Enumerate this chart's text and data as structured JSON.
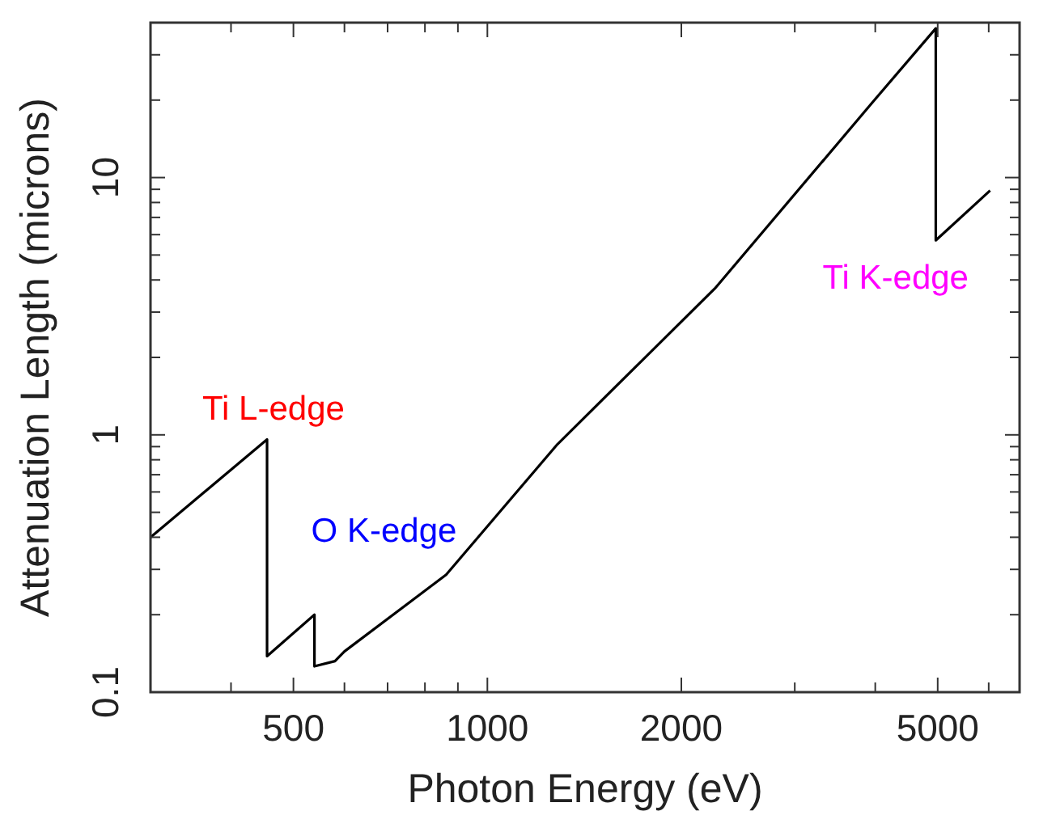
{
  "chart_data": {
    "type": "line",
    "xlabel": "Photon Energy (eV)",
    "ylabel": "Attenuation Length (microns)",
    "log": "xy",
    "grid": false,
    "marker": "none",
    "line_style": "solid",
    "xlim": [
      300,
      6700
    ],
    "ylim": [
      0.1,
      40
    ],
    "xticks": [
      {
        "value": 300,
        "label": null
      },
      {
        "value": 400,
        "label": null
      },
      500,
      {
        "value": 600,
        "label": null
      },
      {
        "value": 700,
        "label": null
      },
      {
        "value": 800,
        "label": null
      },
      {
        "value": 900,
        "label": null
      },
      1000,
      2000,
      {
        "value": 3000,
        "label": null
      },
      {
        "value": 4000,
        "label": null
      },
      5000,
      {
        "value": 6000,
        "label": null
      }
    ],
    "yticks": [
      0.1,
      {
        "value": 0.2,
        "label": null
      },
      {
        "value": 0.3,
        "label": null
      },
      {
        "value": 0.4,
        "label": null
      },
      {
        "value": 0.5,
        "label": null
      },
      {
        "value": 0.6,
        "label": null
      },
      {
        "value": 0.7,
        "label": null
      },
      {
        "value": 0.8,
        "label": null
      },
      {
        "value": 0.9,
        "label": null
      },
      1,
      {
        "value": 2,
        "label": null
      },
      {
        "value": 3,
        "label": null
      },
      {
        "value": 4,
        "label": null
      },
      {
        "value": 5,
        "label": null
      },
      {
        "value": 6,
        "label": null
      },
      {
        "value": 7,
        "label": null
      },
      {
        "value": 8,
        "label": null
      },
      {
        "value": 9,
        "label": null
      },
      10,
      {
        "value": 20,
        "label": null
      },
      {
        "value": 30,
        "label": null
      }
    ],
    "series": [
      {
        "color": "#000000",
        "x": [
          300,
          455,
          455,
          539,
          539,
          580,
          600,
          863,
          1285,
          2254,
          3954,
          4966,
          4966,
          6030
        ],
        "values": [
          0.4,
          0.96,
          0.138,
          0.2,
          0.126,
          0.132,
          0.144,
          0.286,
          0.92,
          3.7,
          19.5,
          38,
          5.7,
          8.9
        ]
      }
    ],
    "annotations": [
      {
        "text": "Ti L-edge",
        "x": 455,
        "y": 0.96
      },
      {
        "text": "O K-edge",
        "x": 539,
        "y": 0.2
      },
      {
        "text": "Ti K-edge",
        "x": 4966,
        "y": 5.7
      }
    ]
  }
}
